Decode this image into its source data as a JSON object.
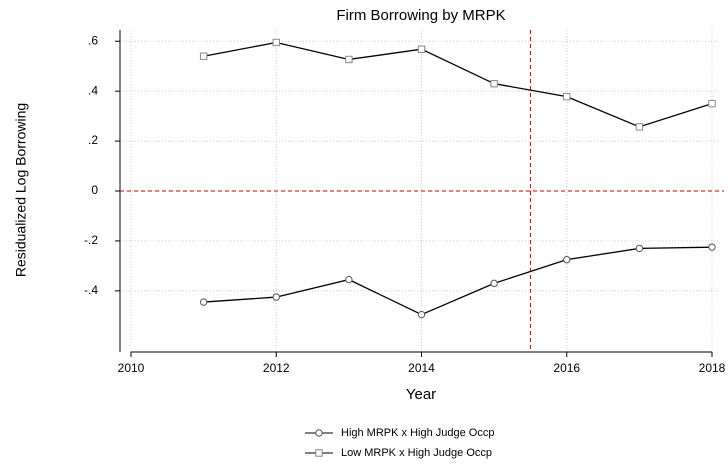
{
  "chart_data": {
    "type": "line",
    "title": "Firm Borrowing by MRPK",
    "x_label": "Year",
    "y_label": "Residualized Log Borrowing",
    "x": [
      2011,
      2012,
      2013,
      2014,
      2015,
      2016,
      2017,
      2018
    ],
    "series": [
      {
        "name": "High MRPK x High Judge Occp",
        "color": "#000000",
        "marker": "circle",
        "values": [
          -0.445,
          -0.425,
          -0.355,
          -0.495,
          -0.37,
          -0.275,
          -0.23,
          -0.225
        ]
      },
      {
        "name": "Low MRPK x High Judge Occp",
        "color": "#000000",
        "marker": "square",
        "values": [
          0.54,
          0.595,
          0.527,
          0.568,
          0.43,
          0.378,
          0.257,
          0.35
        ]
      }
    ],
    "xlim": [
      2010,
      2018
    ],
    "xticks": [
      2010,
      2012,
      2014,
      2016,
      2018
    ],
    "ylim": [
      -0.645,
      0.645
    ],
    "yticks": [
      {
        "value": -0.4,
        "label": "-.4"
      },
      {
        "value": -0.2,
        "label": "-.2"
      },
      0,
      {
        "value": 0.2,
        "label": ".2"
      },
      {
        "value": 0.4,
        "label": ".4"
      },
      {
        "value": 0.6,
        "label": ".6"
      }
    ],
    "hline": 0,
    "vline": 2015.5,
    "ref_color": "#cc0000",
    "grid": true,
    "legend": "bottom"
  }
}
